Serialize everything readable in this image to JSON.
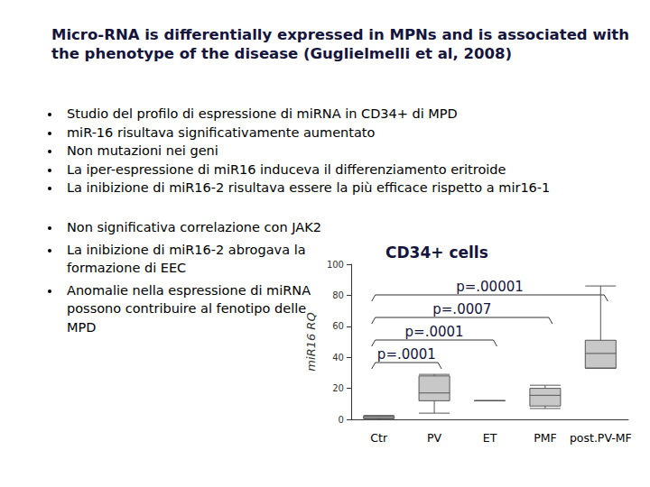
{
  "slide": {
    "title": "Micro-RNA is differentially expressed in MPNs and is associated with the phenotype of the disease (Guglielmelli et al, 2008)",
    "bullets": [
      "Studio del profilo di espressione di miRNA in CD34+ di MPD",
      "miR-16 risultava significativamente aumentato",
      "Non mutazioni nei geni",
      "La iper-espressione di miR16 induceva il differenziamento eritroide",
      "La inibizione di miR16-2 risultava essere la più efficace rispetto a mir16-1"
    ],
    "bullets_2": [
      "Non significativa correlazione con JAK2",
      "La inibizione di miR16-2 abrogava la formazione di EEC",
      "Anomalie nella espressione di miRNA possono contribuire al fenotipo delle MPD"
    ]
  },
  "chart_data": {
    "type": "boxplot",
    "title": "CD34+ cells",
    "y_label": "miR16 RQ",
    "categories": [
      "Ctr",
      "PV",
      "ET",
      "PMF",
      "post.PV-MF"
    ],
    "values": [
      [
        0,
        0.5,
        1,
        2,
        2.5
      ],
      [
        4,
        12,
        17,
        28,
        29
      ],
      [
        12,
        12,
        12,
        12,
        12
      ],
      [
        7,
        8.6,
        15.5,
        20,
        22
      ],
      [
        33,
        33,
        42.5,
        51,
        86
      ]
    ],
    "color": "#c8c8c8",
    "ylim": [
      0,
      100
    ],
    "yticks": [
      0,
      20,
      40,
      60,
      80,
      100
    ],
    "grid": false,
    "annotations": [
      {
        "text": "p=.00001",
        "from": "Ctr",
        "to": "post.PV-MF"
      },
      {
        "text": "p=.0007",
        "from": "Ctr",
        "to": "PMF"
      },
      {
        "text": "p=.0001",
        "from": "Ctr",
        "to": "ET"
      },
      {
        "text": "p=.0001",
        "from": "Ctr",
        "to": "PV"
      }
    ]
  }
}
